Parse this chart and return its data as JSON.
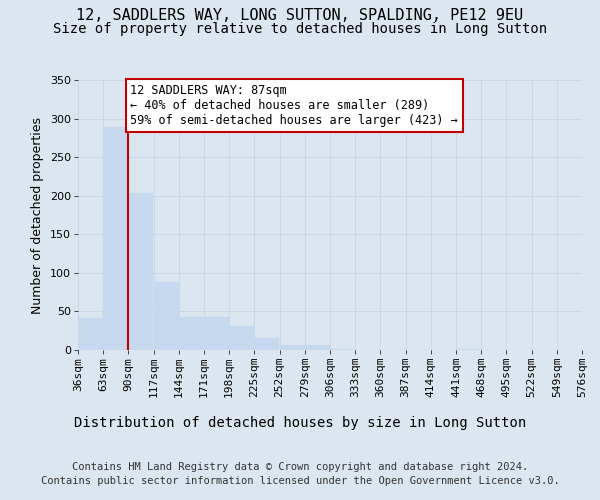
{
  "title1": "12, SADDLERS WAY, LONG SUTTON, SPALDING, PE12 9EU",
  "title2": "Size of property relative to detached houses in Long Sutton",
  "xlabel": "Distribution of detached houses by size in Long Sutton",
  "ylabel": "Number of detached properties",
  "footer1": "Contains HM Land Registry data © Crown copyright and database right 2024.",
  "footer2": "Contains public sector information licensed under the Open Government Licence v3.0.",
  "annotation_line1": "12 SADDLERS WAY: 87sqm",
  "annotation_line2": "← 40% of detached houses are smaller (289)",
  "annotation_line3": "59% of semi-detached houses are larger (423) →",
  "bar_edges": [
    36,
    63,
    90,
    117,
    144,
    171,
    198,
    225,
    252,
    279,
    306,
    333,
    360,
    387,
    414,
    441,
    468,
    495,
    522,
    549,
    576
  ],
  "bar_heights": [
    41,
    289,
    203,
    88,
    43,
    43,
    31,
    15,
    7,
    6,
    1,
    0,
    0,
    0,
    0,
    1,
    0,
    0,
    0,
    0,
    0
  ],
  "bar_color": "#c5d8ed",
  "bar_edgecolor": "#c5d8ed",
  "vline_color": "#c00000",
  "vline_x": 90,
  "annotation_box_edgecolor": "#c00000",
  "annotation_box_facecolor": "#ffffff",
  "grid_color": "#c8d4e6",
  "bg_color": "#dce6f0",
  "plot_bg_color": "#dce6f0",
  "tick_labels": [
    "36sqm",
    "63sqm",
    "90sqm",
    "117sqm",
    "144sqm",
    "171sqm",
    "198sqm",
    "225sqm",
    "252sqm",
    "279sqm",
    "306sqm",
    "333sqm",
    "360sqm",
    "387sqm",
    "414sqm",
    "441sqm",
    "468sqm",
    "495sqm",
    "522sqm",
    "549sqm",
    "576sqm"
  ],
  "ylim": [
    0,
    350
  ],
  "yticks": [
    0,
    50,
    100,
    150,
    200,
    250,
    300,
    350
  ],
  "title_fontsize": 11,
  "subtitle_fontsize": 10,
  "xlabel_fontsize": 10,
  "ylabel_fontsize": 9,
  "tick_fontsize": 8,
  "footer_fontsize": 7.5,
  "annotation_fontsize": 8.5
}
